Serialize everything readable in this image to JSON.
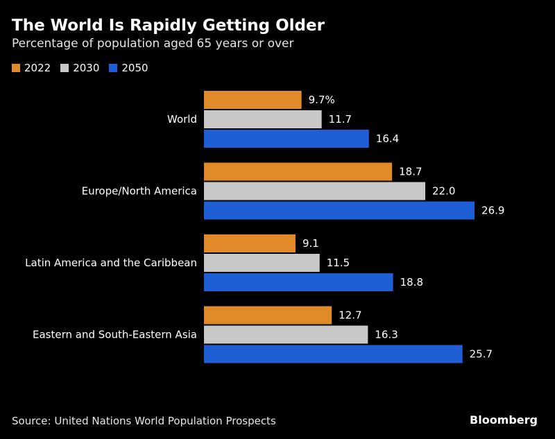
{
  "chart_data": {
    "type": "bar",
    "orientation": "horizontal",
    "title": "The World Is Rapidly Getting Older",
    "subtitle": "Percentage of population aged 65 years or over",
    "categories": [
      "World",
      "Europe/North America",
      "Latin America and the Caribbean",
      "Eastern and South-Eastern Asia"
    ],
    "series": [
      {
        "name": "2022",
        "color": "#e08a2a",
        "values": [
          9.7,
          18.7,
          9.1,
          12.7
        ],
        "labels": [
          "9.7%",
          "18.7",
          "9.1",
          "12.7"
        ]
      },
      {
        "name": "2030",
        "color": "#c8c8c8",
        "values": [
          11.7,
          22.0,
          11.5,
          16.3
        ],
        "labels": [
          "11.7",
          "22.0",
          "11.5",
          "16.3"
        ]
      },
      {
        "name": "2050",
        "color": "#1f5fd6",
        "values": [
          16.4,
          26.9,
          18.8,
          25.7
        ],
        "labels": [
          "16.4",
          "26.9",
          "18.8",
          "25.7"
        ]
      }
    ],
    "xlim": [
      0,
      30
    ],
    "grid": false,
    "legend_position": "top-left"
  },
  "footer": {
    "source": "Source: United Nations World Population Prospects",
    "brand": "Bloomberg"
  }
}
